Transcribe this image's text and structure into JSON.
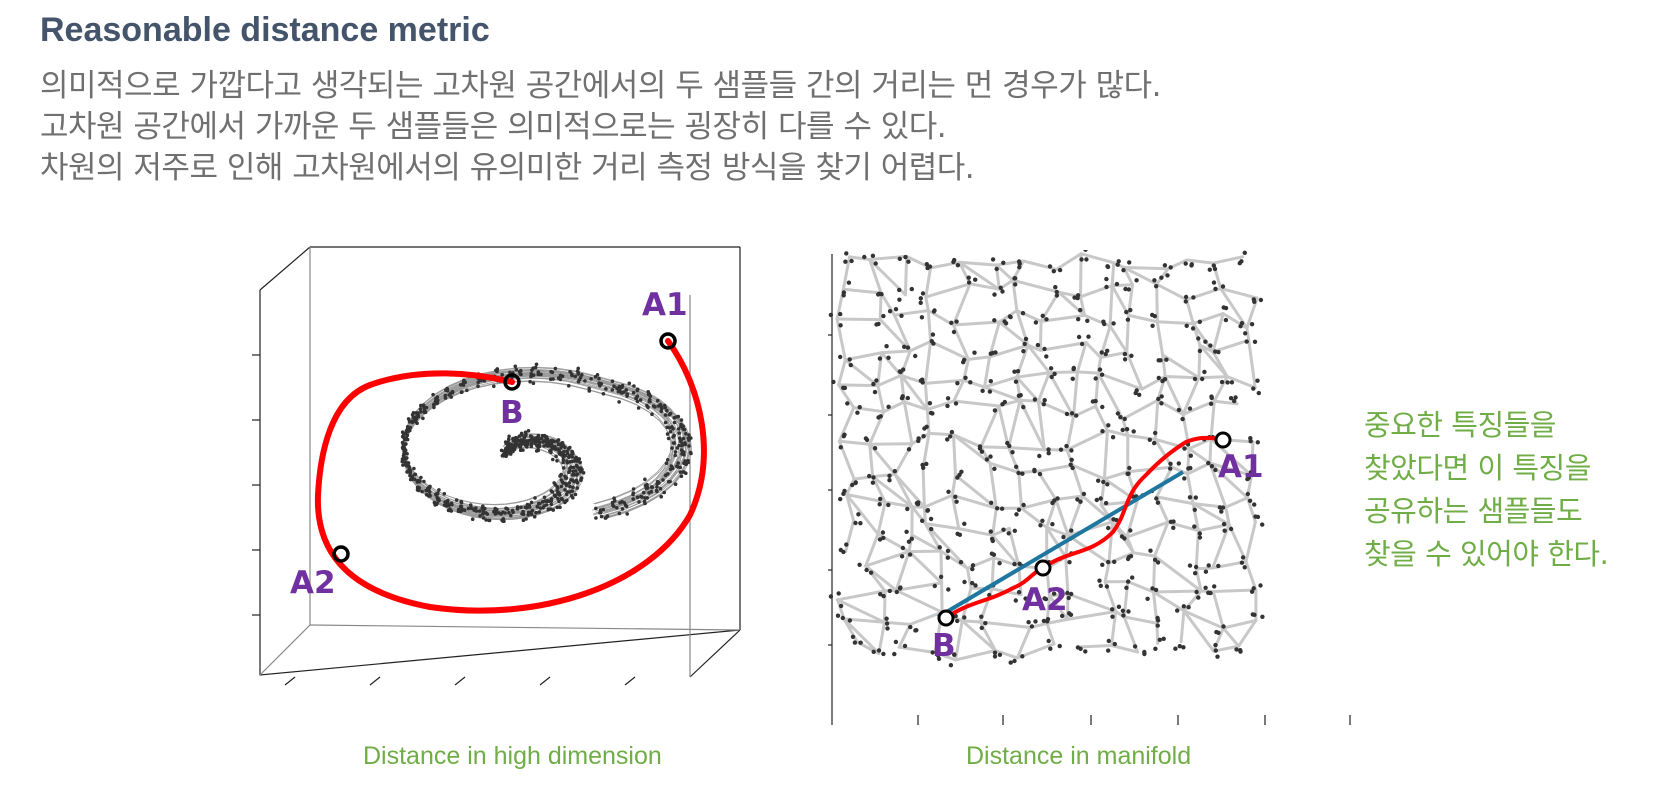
{
  "slide": {
    "title": "Reasonable distance metric",
    "bullets": [
      "의미적으로 가깝다고 생각되는 고차원 공간에서의 두 샘플들 간의 거리는 먼 경우가 많다.",
      "고차원 공간에서 가까운 두 샘플들은 의미적으로는 굉장히 다를 수 있다.",
      "차원의 저주로 인해 고차원에서의 유의미한 거리 측정 방식을 찾기 어렵다."
    ]
  },
  "figures": {
    "high_dim": {
      "caption": "Distance in high dimension",
      "points": {
        "a1": "A1",
        "a2": "A2",
        "b": "B"
      }
    },
    "manifold": {
      "caption": "Distance in manifold",
      "points": {
        "a1": "A1",
        "a2": "A2",
        "b": "B"
      }
    }
  },
  "note": {
    "lines": [
      "중요한 특징들을",
      "찾았다면 이 특징을",
      "공유하는 샘플들도",
      "찾을 수 있어야 한다."
    ]
  },
  "colors": {
    "title": "#44546a",
    "body_text": "#707070",
    "caption": "#70ad47",
    "point_label": "#7030a0",
    "geodesic_path": "#ff0000",
    "euclidean_line": "#1f77a0",
    "graph_edge": "#c8c8c8",
    "graph_node": "#333333"
  }
}
